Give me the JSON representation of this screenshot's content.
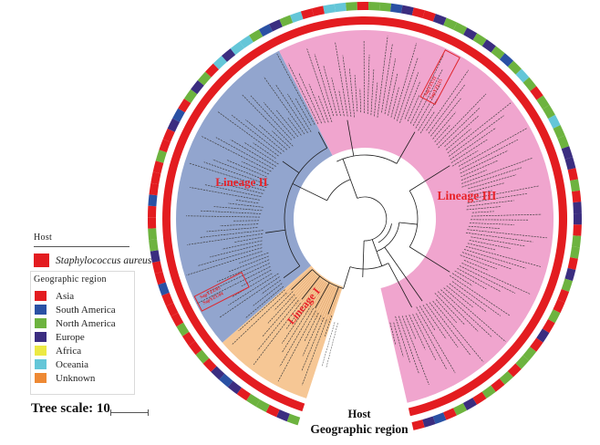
{
  "labels": {
    "host_ring": "Host",
    "geo_ring": "Geographic region",
    "tree_scale": "Tree scale: 10"
  },
  "legend": {
    "host": {
      "title": "Host",
      "entries": [
        {
          "label": "Staphylococcus aureus",
          "color": "#e31c20"
        }
      ]
    },
    "geographic": {
      "title": "Geographic region",
      "entries": [
        {
          "label": "Asia",
          "color": "#e31c20"
        },
        {
          "label": "South America",
          "color": "#2a51a4"
        },
        {
          "label": "North America",
          "color": "#6db33f"
        },
        {
          "label": "Europe",
          "color": "#3b2d80"
        },
        {
          "label": "Africa",
          "color": "#ece944"
        },
        {
          "label": "Oceania",
          "color": "#64c6d8"
        },
        {
          "label": "Unknown",
          "color": "#ee8934"
        }
      ]
    }
  },
  "highlighted_taxa": {
    "lineage3_box": [
      "SapYZU11",
      "SapYZU15"
    ],
    "lineage2_box": [
      "SapYZU04",
      "SapYZU05"
    ]
  },
  "chart_data": {
    "type": "circular_phylogenetic_tree",
    "title": "",
    "tree_scale": 10,
    "legend_position": "left",
    "lineages": [
      {
        "name": "Lineage I",
        "color": "#f6c795",
        "angle_start_deg": 198,
        "angle_end_deg": 229
      },
      {
        "name": "Lineage II",
        "color": "#92a5ce",
        "angle_start_deg": 229,
        "angle_end_deg": 333
      },
      {
        "name": "Lineage III",
        "color": "#f0a5ce",
        "angle_start_deg": 333,
        "angle_end_deg": 527
      }
    ],
    "rings": [
      {
        "name": "Host",
        "position": "inner",
        "segments": "uniform",
        "color": "#e31c20",
        "meaning": "Staphylococcus aureus"
      },
      {
        "name": "Geographic region",
        "position": "outer",
        "region_codes": {
          "A": "Asia",
          "S": "South America",
          "N": "North America",
          "E": "Europe",
          "F": "Africa",
          "O": "Oceania",
          "U": "Unknown"
        },
        "segment_sequence_clockwise_from_gap": [
          "N",
          "E",
          "A",
          "N",
          "N",
          "A",
          "E",
          "S",
          "E",
          "A",
          "N",
          "A",
          "A",
          "N",
          "A",
          "A",
          "A",
          "S",
          "A",
          "A",
          "E",
          "N",
          "N",
          "A",
          "A",
          "S",
          "A",
          "A",
          "A",
          "N",
          "A",
          "A",
          "E",
          "S",
          "A",
          "N",
          "E",
          "N",
          "A",
          "O",
          "E",
          "O",
          "O",
          "N",
          "S",
          "E",
          "N",
          "O",
          "A",
          "A",
          "O",
          "O",
          "N",
          "A",
          "N",
          "N",
          "S",
          "E",
          "A",
          "A",
          "E",
          "N",
          "N",
          "E",
          "N",
          "E",
          "N",
          "S",
          "N",
          "O",
          "N",
          "A",
          "N",
          "N",
          "O",
          "N",
          "N",
          "E",
          "E",
          "A",
          "N",
          "A",
          "E",
          "E",
          "A",
          "N",
          "N",
          "A",
          "E",
          "N",
          "A",
          "A",
          "N",
          "A",
          "E",
          "A",
          "N",
          "N",
          "A",
          "N",
          "A",
          "N",
          "A",
          "E",
          "N",
          "A",
          "S",
          "E",
          "A"
        ]
      }
    ],
    "gap_angle_deg": [
      167,
      198
    ]
  }
}
